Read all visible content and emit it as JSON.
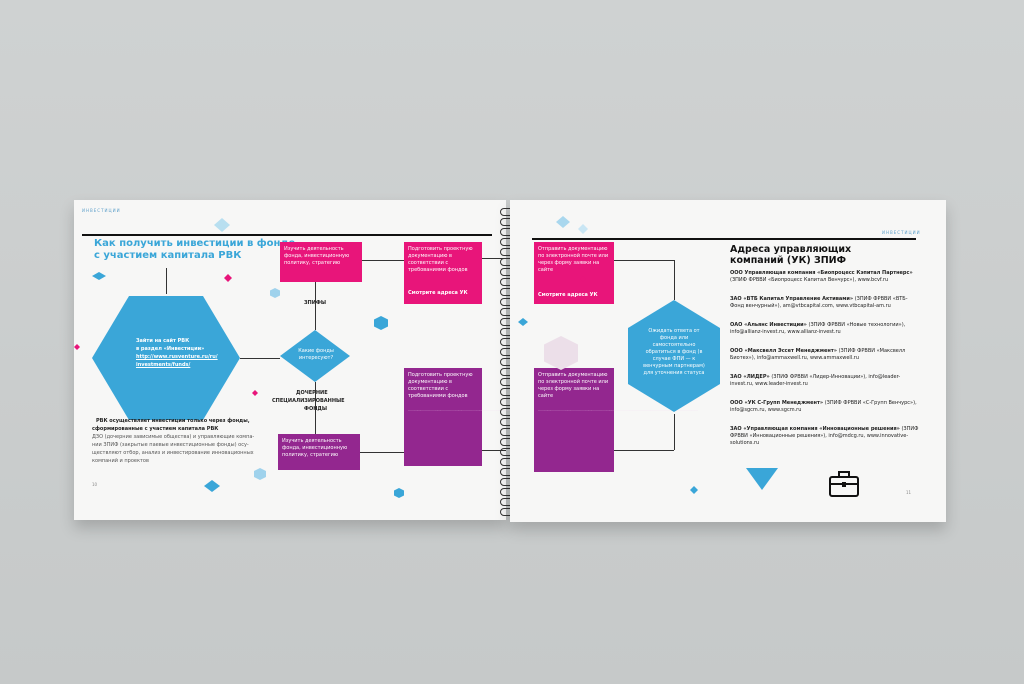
{
  "left_page": {
    "header": "ИНВЕСТИЦИИ",
    "title_line1": "Как получить инвестиции в фонде",
    "title_line2": "с участием капитала РВК",
    "hex_text_1": "Зайти на сайт РВК",
    "hex_text_2": "в раздел «Инвестиции»",
    "hex_text_3": "http://www.rusventure.ru/ru/",
    "hex_text_4": "investments/funds/",
    "diamond_text": "Какие фонды интересуют?",
    "label_zpif": "ЗПИФЫ",
    "label_dochernie_1": "ДОЧЕРНИЕ",
    "label_dochernie_2": "СПЕЦИАЛИЗИРОВАННЫЕ",
    "label_dochernie_3": "ФОНДЫ",
    "box_study_top": "Изучить деятельность фонда, инвестиционную политику, стратегию",
    "box_study_bottom": "Изучить деятельность фонда, инвестиционную политику, стратегию",
    "box_docs_top": "Подготовить проектную документацию в соответствии с требованиями фондов",
    "box_docs_top_link": "Смотрите адреса УК",
    "box_docs_bottom": "Подготовить проектную документацию в соответствии с требованиями фондов",
    "desc_bold_1": "РВК осуществляет инвестиции только через фонды,",
    "desc_bold_2": "сформированные с участием капитала РВК",
    "desc_1": "ДЗО (дочерние зависимые общества) и управляющие компа-",
    "desc_2": "нии ЗПИФ (закрытые паевые инвестиционные фонды) осу-",
    "desc_3": "ществляют отбор, анализ и инвестирование инновационных",
    "desc_4": "компаний и проектов",
    "page_num": "10"
  },
  "right_page": {
    "header": "ИНВЕСТИЦИИ",
    "box_send_top": "Отправить документацию по электронной почте или через форму заявки на сайте",
    "box_send_top_link": "Смотрите адреса УК",
    "box_send_bottom": "Отправить документацию по электронной почте или через форму заявки на сайте",
    "hex_wait": "Ожидать ответа от фонда или самостоятельно обратиться в фонд (в случае ФПИ — к венчурным партнерам) для уточнения статуса",
    "title_line1": "Адреса управляющих",
    "title_line2": "компаний (УК) ЗПИФ",
    "addresses": [
      {
        "name": "ООО Управляющая компания «Биопроцесс Кэпитал Партнерс»",
        "rest": "(ЗПИФ ФРВВИ «Биопроцесс Капитал Венчурс»), www.bcvf.ru"
      },
      {
        "name": "ЗАО «ВТБ Капитал Управление Активами»",
        "rest": "(ЗПИФ ФРВВИ «ВТБ-Фонд венчурный»), am@vtbcapital.com, www.vtbcapital-am.ru"
      },
      {
        "name": "ОАО «Альянс Инвестиции»",
        "rest": "(ЗПИФ ФРВВИ «Новые технологии»), info@allianz-invest.ru, www.allianz-invest.ru"
      },
      {
        "name": "ООО «Максвелл Эссет Менеджмент»",
        "rest": "(ЗПИФ ФРВВИ «Максвелл Биотех»), info@ammaxwell.ru, www.ammaxwell.ru"
      },
      {
        "name": "ЗАО «ЛИДЕР»",
        "rest": "(ЗПИФ ФРВВИ «Лидер-Инновации»), info@leader-invest.ru, www.leader-invest.ru"
      },
      {
        "name": "ООО «УК С-Групп Менеджмент»",
        "rest": "(ЗПИФ ФРВВИ «С-Групп Венчурс»), info@sgcm.ru, www.sgcm.ru"
      },
      {
        "name": "ЗАО «Управляющая компания «Инновационные решения»",
        "rest": "(ЗПИФ ФРВВИ «Инновационные решения»), info@mdcg.ru, www.innovative-solutions.ru"
      }
    ],
    "page_num": "11"
  },
  "colors": {
    "accent_blue": "#3aa6d8",
    "pink": "#e8157a",
    "purple": "#93278f"
  },
  "icons": [
    "briefcase-icon"
  ]
}
